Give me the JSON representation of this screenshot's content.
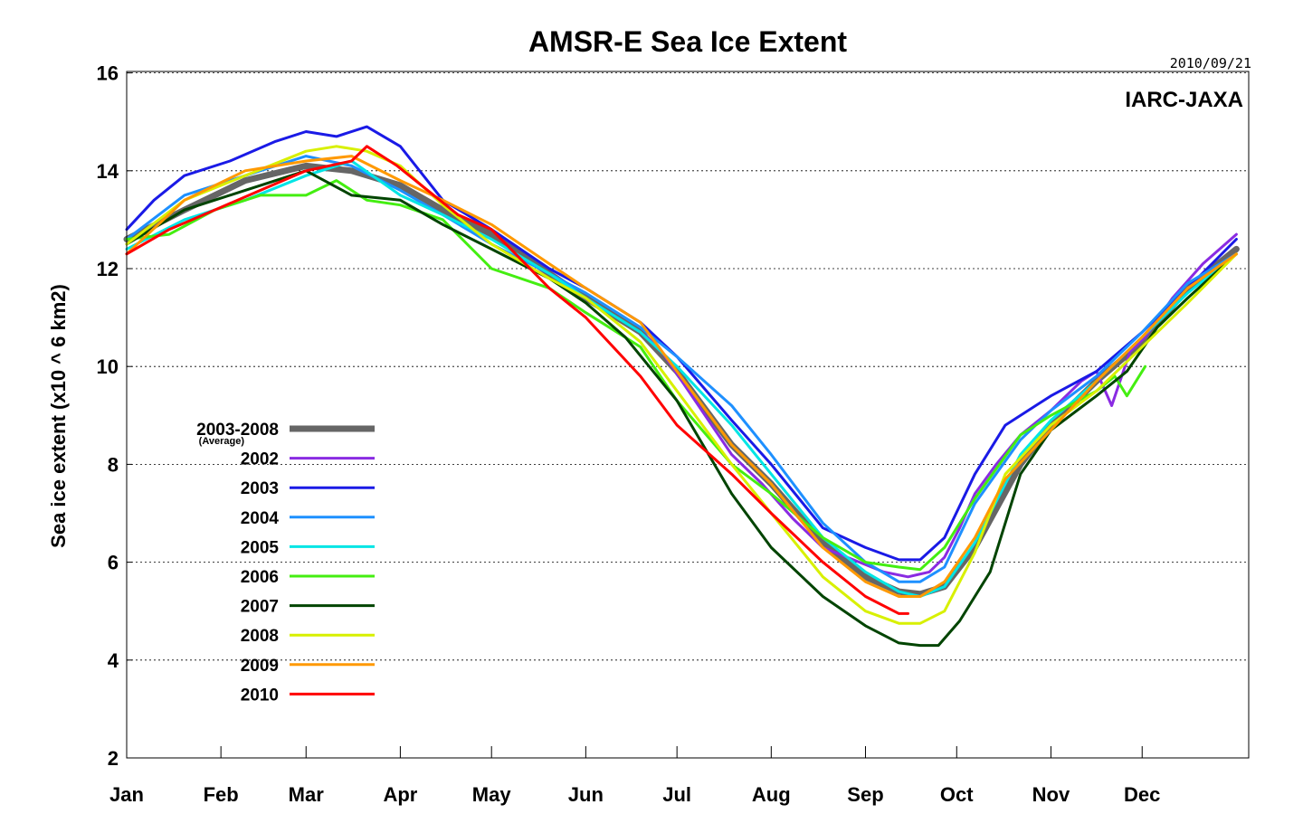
{
  "chart_data": {
    "type": "line",
    "title": "AMSR-E Sea Ice Extent",
    "date_stamp": "2010/09/21",
    "credit": "IARC-JAXA",
    "ylabel": "Sea ice extent (x10 ^ 6 km2)",
    "xlabel": "",
    "ylim": [
      2,
      16.2
    ],
    "yticks": [
      2,
      4,
      6,
      8,
      10,
      12,
      14,
      16
    ],
    "xlim": [
      1,
      366
    ],
    "x_unit": "day of year",
    "x_ticks": [
      {
        "label": "Jan",
        "day": 1
      },
      {
        "label": "Feb",
        "day": 32
      },
      {
        "label": "Mar",
        "day": 60
      },
      {
        "label": "Apr",
        "day": 91
      },
      {
        "label": "May",
        "day": 121
      },
      {
        "label": "Jun",
        "day": 152
      },
      {
        "label": "Jul",
        "day": 182
      },
      {
        "label": "Aug",
        "day": 213
      },
      {
        "label": "Sep",
        "day": 244
      },
      {
        "label": "Oct",
        "day": 274
      },
      {
        "label": "Nov",
        "day": 305
      },
      {
        "label": "Dec",
        "day": 335
      }
    ],
    "grid": "horizontal dotted",
    "legend_position": "middle-left",
    "series": [
      {
        "name": "2003-2008",
        "sublabel": "(Average)",
        "color": "#666666",
        "width": 7,
        "x": [
          1,
          20,
          40,
          60,
          75,
          91,
          105,
          121,
          140,
          152,
          170,
          182,
          200,
          213,
          230,
          244,
          255,
          262,
          270,
          280,
          295,
          305,
          320,
          335,
          350,
          366
        ],
        "y": [
          12.6,
          13.2,
          13.8,
          14.1,
          14.0,
          13.7,
          13.2,
          12.7,
          11.9,
          11.4,
          10.7,
          9.9,
          8.4,
          7.6,
          6.4,
          5.7,
          5.4,
          5.35,
          5.5,
          6.3,
          8.0,
          8.8,
          9.7,
          10.5,
          11.6,
          12.4
        ]
      },
      {
        "name": "2002",
        "color": "#8a2be2",
        "width": 3,
        "x": [
          171,
          176,
          200,
          210,
          220,
          230,
          240,
          250,
          258,
          265,
          270,
          275,
          280,
          287,
          295,
          305,
          315,
          320,
          325,
          331,
          336,
          345,
          355,
          366
        ],
        "y": [
          10.65,
          10.4,
          8.2,
          7.6,
          6.9,
          6.3,
          6.05,
          5.8,
          5.7,
          5.8,
          6.1,
          6.7,
          7.4,
          8.0,
          8.6,
          9.1,
          9.7,
          9.9,
          9.2,
          10.3,
          10.6,
          11.4,
          12.1,
          12.7
        ]
      },
      {
        "name": "2003",
        "color": "#1a1ae6",
        "width": 3,
        "x": [
          1,
          10,
          20,
          35,
          50,
          60,
          70,
          80,
          91,
          105,
          121,
          140,
          152,
          170,
          182,
          200,
          213,
          230,
          244,
          255,
          262,
          270,
          280,
          290,
          305,
          320,
          335,
          350,
          366
        ],
        "y": [
          12.8,
          13.4,
          13.9,
          14.2,
          14.6,
          14.8,
          14.7,
          14.9,
          14.5,
          13.4,
          12.8,
          12.0,
          11.6,
          10.9,
          10.2,
          8.9,
          8.0,
          6.7,
          6.3,
          6.05,
          6.05,
          6.5,
          7.8,
          8.8,
          9.4,
          9.9,
          10.7,
          11.6,
          12.6
        ]
      },
      {
        "name": "2004",
        "color": "#1e90ff",
        "width": 3,
        "x": [
          1,
          20,
          40,
          60,
          75,
          91,
          105,
          121,
          140,
          152,
          170,
          182,
          200,
          213,
          230,
          244,
          255,
          262,
          270,
          280,
          295,
          305,
          320,
          335,
          350,
          366
        ],
        "y": [
          12.6,
          13.5,
          13.9,
          14.3,
          14.1,
          13.6,
          13.1,
          12.5,
          11.9,
          11.5,
          10.8,
          10.2,
          9.2,
          8.2,
          6.8,
          6.0,
          5.6,
          5.6,
          5.9,
          7.2,
          8.5,
          9.1,
          9.8,
          10.7,
          11.7,
          12.3
        ]
      },
      {
        "name": "2005",
        "color": "#00e5e5",
        "width": 3,
        "x": [
          1,
          20,
          40,
          60,
          75,
          91,
          105,
          121,
          140,
          152,
          170,
          182,
          200,
          213,
          230,
          244,
          255,
          262,
          270,
          280,
          295,
          305,
          320,
          335,
          350,
          366
        ],
        "y": [
          12.4,
          13.0,
          13.4,
          13.9,
          14.2,
          13.5,
          13.1,
          12.6,
          11.9,
          11.4,
          10.7,
          10.0,
          8.8,
          7.8,
          6.5,
          5.8,
          5.4,
          5.3,
          5.5,
          6.4,
          8.2,
          8.9,
          9.7,
          10.6,
          11.5,
          12.3
        ]
      },
      {
        "name": "2006",
        "color": "#44ee11",
        "width": 3,
        "x": [
          1,
          15,
          30,
          45,
          60,
          70,
          80,
          91,
          105,
          121,
          140,
          152,
          170,
          182,
          200,
          213,
          230,
          244,
          255,
          262,
          270,
          280,
          295,
          305,
          320,
          326,
          330,
          336
        ],
        "y": [
          12.6,
          12.7,
          13.2,
          13.5,
          13.5,
          13.8,
          13.4,
          13.3,
          13.0,
          12.0,
          11.6,
          11.1,
          10.4,
          9.3,
          8.0,
          7.4,
          6.5,
          6.0,
          5.9,
          5.85,
          6.3,
          7.3,
          8.6,
          9.0,
          9.5,
          9.8,
          9.4,
          10.0
        ]
      },
      {
        "name": "2007",
        "color": "#004400",
        "width": 3,
        "x": [
          1,
          20,
          40,
          60,
          75,
          91,
          105,
          121,
          140,
          152,
          165,
          182,
          200,
          213,
          230,
          244,
          255,
          262,
          268,
          275,
          285,
          295,
          305,
          320,
          330,
          340,
          350,
          366
        ],
        "y": [
          12.5,
          13.2,
          13.6,
          14.0,
          13.5,
          13.4,
          12.9,
          12.4,
          11.8,
          11.3,
          10.6,
          9.3,
          7.4,
          6.3,
          5.3,
          4.7,
          4.35,
          4.3,
          4.3,
          4.8,
          5.8,
          7.8,
          8.7,
          9.4,
          9.9,
          10.8,
          11.4,
          12.3
        ]
      },
      {
        "name": "2008",
        "color": "#d8f000",
        "width": 3,
        "x": [
          1,
          20,
          40,
          60,
          70,
          80,
          91,
          105,
          121,
          140,
          152,
          170,
          182,
          200,
          213,
          230,
          244,
          255,
          262,
          270,
          280,
          290,
          305,
          320,
          335,
          350,
          366
        ],
        "y": [
          12.5,
          13.4,
          13.9,
          14.4,
          14.5,
          14.4,
          14.1,
          13.3,
          12.5,
          11.8,
          11.4,
          10.5,
          9.5,
          8.0,
          7.0,
          5.7,
          5.0,
          4.75,
          4.75,
          5.0,
          6.2,
          7.8,
          8.8,
          9.5,
          10.4,
          11.3,
          12.3
        ]
      },
      {
        "name": "2009",
        "color": "#ff9900",
        "width": 3,
        "x": [
          1,
          20,
          40,
          60,
          75,
          91,
          105,
          121,
          140,
          152,
          170,
          182,
          200,
          213,
          230,
          244,
          255,
          262,
          270,
          280,
          290,
          305,
          320,
          335,
          350,
          366
        ],
        "y": [
          12.3,
          13.4,
          14.0,
          14.2,
          14.3,
          13.8,
          13.4,
          12.9,
          12.1,
          11.6,
          10.9,
          9.9,
          8.4,
          7.6,
          6.3,
          5.6,
          5.3,
          5.3,
          5.6,
          6.5,
          7.7,
          8.7,
          9.7,
          10.6,
          11.6,
          12.3
        ]
      },
      {
        "name": "2010",
        "color": "#ff0000",
        "width": 3,
        "x": [
          1,
          15,
          30,
          45,
          60,
          75,
          80,
          90,
          100,
          110,
          121,
          140,
          152,
          170,
          182,
          200,
          213,
          230,
          244,
          255,
          258
        ],
        "y": [
          12.3,
          12.8,
          13.2,
          13.6,
          14.0,
          14.2,
          14.5,
          14.1,
          13.6,
          13.1,
          12.8,
          11.6,
          11.0,
          9.8,
          8.8,
          7.8,
          7.0,
          6.0,
          5.3,
          4.95,
          4.95
        ]
      }
    ]
  }
}
